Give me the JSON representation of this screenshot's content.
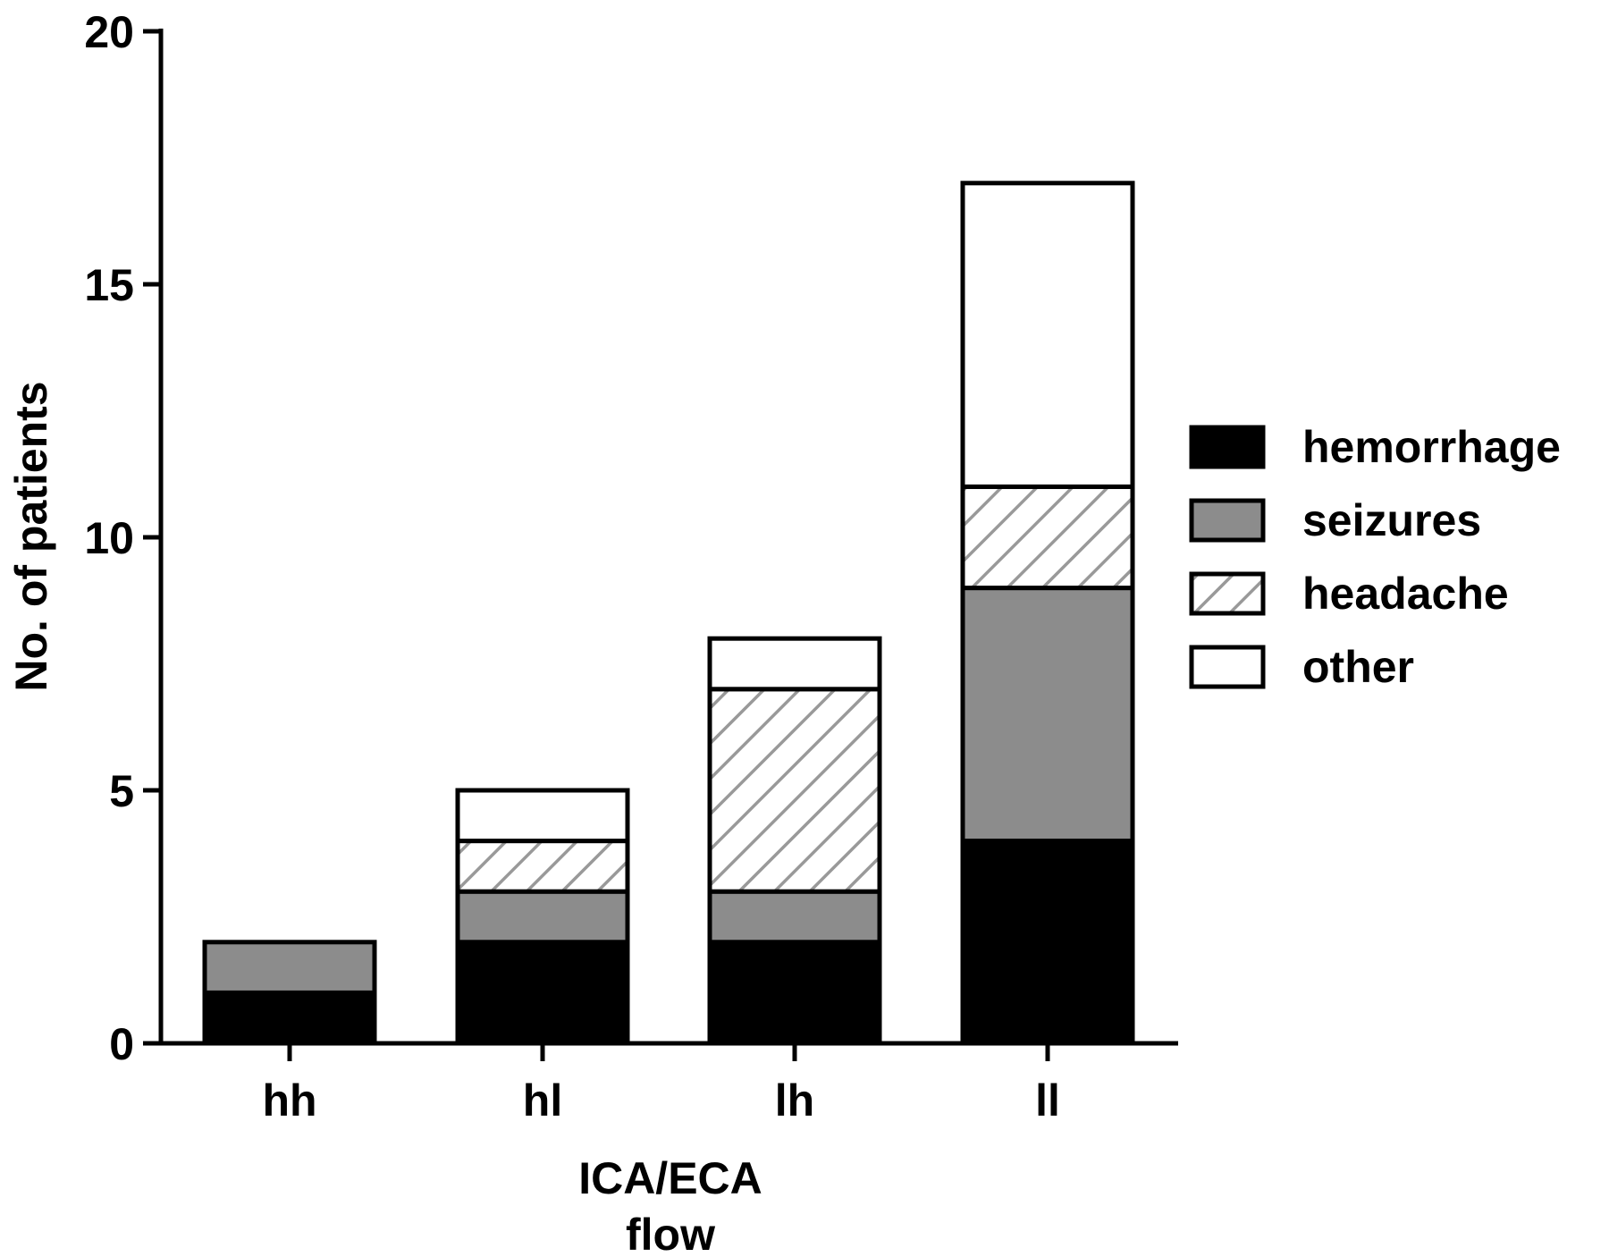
{
  "chart_data": {
    "type": "bar",
    "stacked": true,
    "categories": [
      "hh",
      "hl",
      "lh",
      "ll"
    ],
    "series": [
      {
        "name": "hemorrhage",
        "values": [
          1,
          2,
          2,
          4
        ],
        "fill": "#000000",
        "pattern": "solid"
      },
      {
        "name": "seizures",
        "values": [
          1,
          1,
          1,
          5
        ],
        "fill": "#8c8c8c",
        "pattern": "solid"
      },
      {
        "name": "headache",
        "values": [
          0,
          1,
          4,
          2
        ],
        "fill": "#ffffff",
        "pattern": "hatch",
        "hatch_color": "#999999"
      },
      {
        "name": "other",
        "values": [
          0,
          1,
          1,
          6
        ],
        "fill": "#ffffff",
        "pattern": "solid"
      }
    ],
    "xlabel": [
      "ICA/ECA",
      "flow"
    ],
    "ylabel": "No. of patients",
    "ylim": [
      0,
      20
    ],
    "yticks": [
      "0",
      "5",
      "10",
      "15",
      "20"
    ],
    "legend_position": "right",
    "grid": false
  }
}
